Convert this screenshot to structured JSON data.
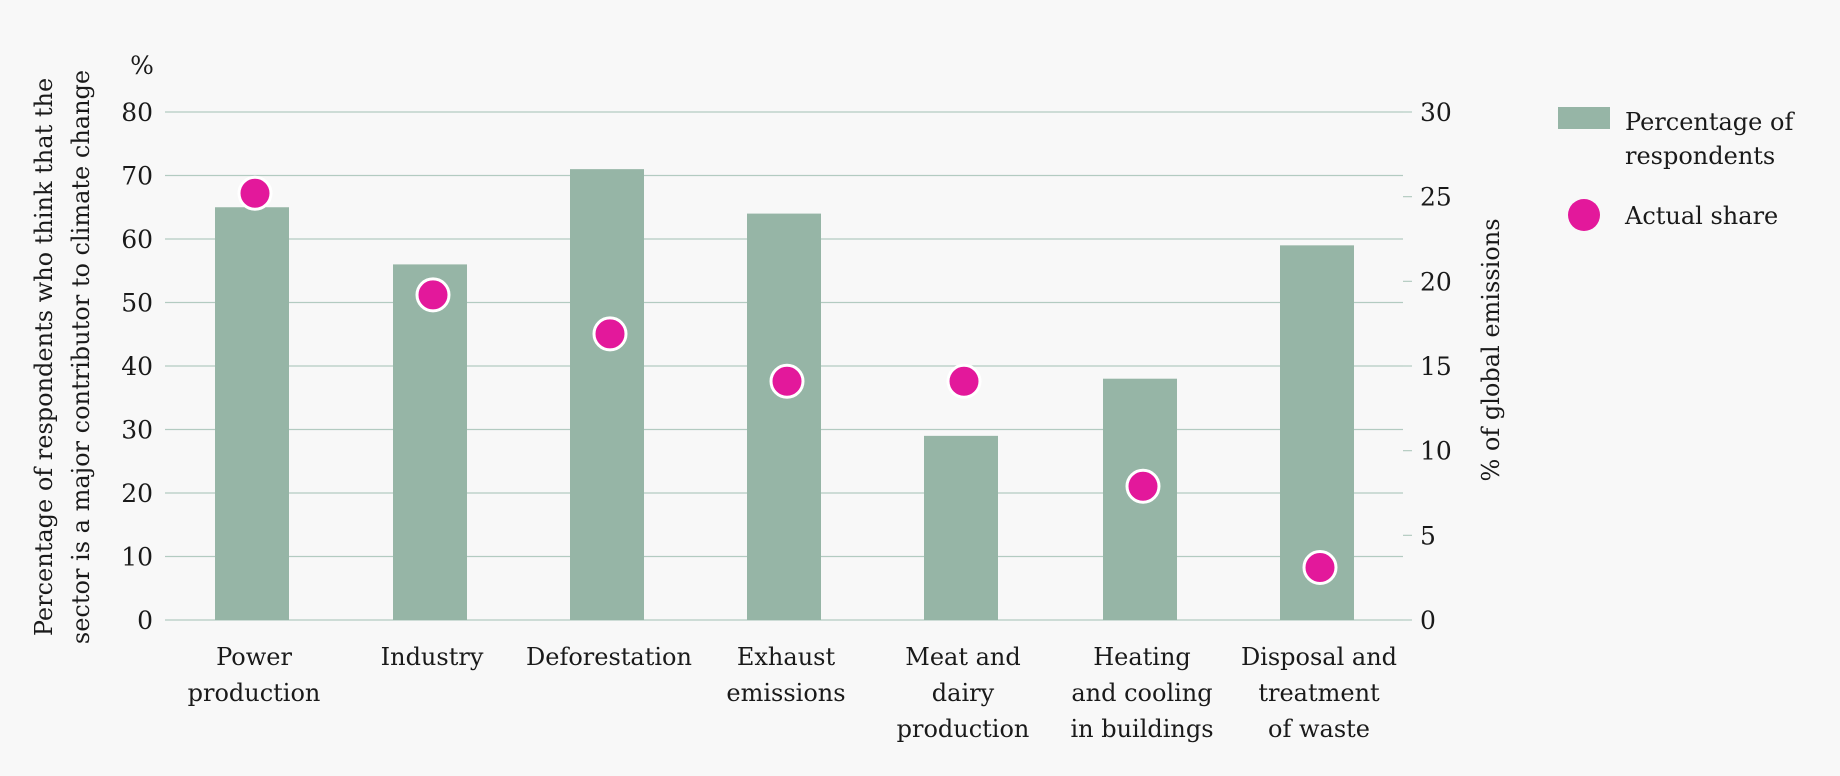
{
  "chart_data": {
    "type": "bar",
    "categories": [
      [
        "Power",
        "production"
      ],
      [
        "Industry"
      ],
      [
        "Deforestation"
      ],
      [
        "Exhaust",
        "emissions"
      ],
      [
        "Meat and",
        "dairy",
        "production"
      ],
      [
        "Heating",
        "and cooling",
        "in buildings"
      ],
      [
        "Disposal and",
        "treatment",
        "of waste"
      ]
    ],
    "series": [
      {
        "name": "Percentage of respondents",
        "legend_lines": [
          "Percentage of",
          "respondents"
        ],
        "axis": "left",
        "type": "bar",
        "color": "#96b5a6",
        "values": [
          65,
          56,
          71,
          64,
          29,
          38,
          59
        ]
      },
      {
        "name": "Actual share",
        "legend_lines": [
          "Actual share"
        ],
        "axis": "right",
        "type": "scatter",
        "color": "#e3189b",
        "values": [
          25.2,
          19.2,
          16.9,
          14.1,
          14.1,
          7.9,
          3.1
        ]
      }
    ],
    "left_axis": {
      "unit": "%",
      "title_lines": [
        "Percentage of respondents who think that the",
        "sector is a major contributor to climate change"
      ],
      "ylim": [
        0,
        80
      ],
      "ticks": [
        "0",
        "10",
        "20",
        "30",
        "40",
        "50",
        "60",
        "70",
        "80"
      ]
    },
    "right_axis": {
      "title": "% of global emissions",
      "ylim": [
        0,
        30
      ],
      "ticks": [
        "0",
        "5",
        "10",
        "15",
        "20",
        "25",
        "30"
      ]
    },
    "grid": true,
    "legend_position": "right"
  }
}
